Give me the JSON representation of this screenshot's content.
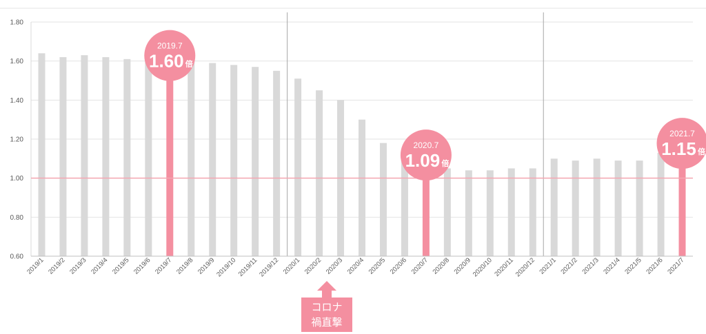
{
  "chart_data": {
    "type": "bar",
    "categories": [
      "2019/1",
      "2019/2",
      "2019/3",
      "2019/4",
      "2019/5",
      "2019/6",
      "2019/7",
      "2019/8",
      "2019/9",
      "2019/10",
      "2019/11",
      "2019/12",
      "2020/1",
      "2020/2",
      "2020/3",
      "2020/4",
      "2020/5",
      "2020/6",
      "2020/7",
      "2020/8",
      "2020/9",
      "2020/10",
      "2020/11",
      "2020/12",
      "2021/1",
      "2021/2",
      "2021/3",
      "2021/4",
      "2021/5",
      "2021/6",
      "2021/7"
    ],
    "values": [
      1.64,
      1.62,
      1.63,
      1.62,
      1.61,
      1.61,
      1.6,
      1.6,
      1.59,
      1.58,
      1.57,
      1.55,
      1.51,
      1.45,
      1.4,
      1.3,
      1.18,
      1.12,
      1.09,
      1.05,
      1.04,
      1.04,
      1.05,
      1.05,
      1.1,
      1.09,
      1.1,
      1.09,
      1.09,
      1.13,
      1.15
    ],
    "highlighted": [
      "2019/7",
      "2020/7",
      "2021/7"
    ],
    "ylim": [
      0.6,
      1.8
    ],
    "yticks": [
      "0.60",
      "0.80",
      "1.00",
      "1.20",
      "1.40",
      "1.60",
      "1.80"
    ],
    "reference_line": 1.0,
    "year_dividers_after": [
      "2019/12",
      "2020/12"
    ],
    "grid": true,
    "colors": {
      "bar": "#d9d9d9",
      "highlight": "#f48fa0",
      "reference": "#f4a6b1",
      "grid": "#e3e3e3",
      "divider": "#a6a6a6"
    },
    "annotations": [
      {
        "category": "2019/7",
        "date": "2019.7",
        "value": "1.60",
        "unit": "倍"
      },
      {
        "category": "2020/7",
        "date": "2020.7",
        "value": "1.09",
        "unit": "倍"
      },
      {
        "category": "2021/7",
        "date": "2021.7",
        "value": "1.15",
        "unit": "倍"
      }
    ],
    "callout": {
      "category": "2020/2",
      "line1": "コロナ",
      "line2": "禍直撃"
    }
  }
}
